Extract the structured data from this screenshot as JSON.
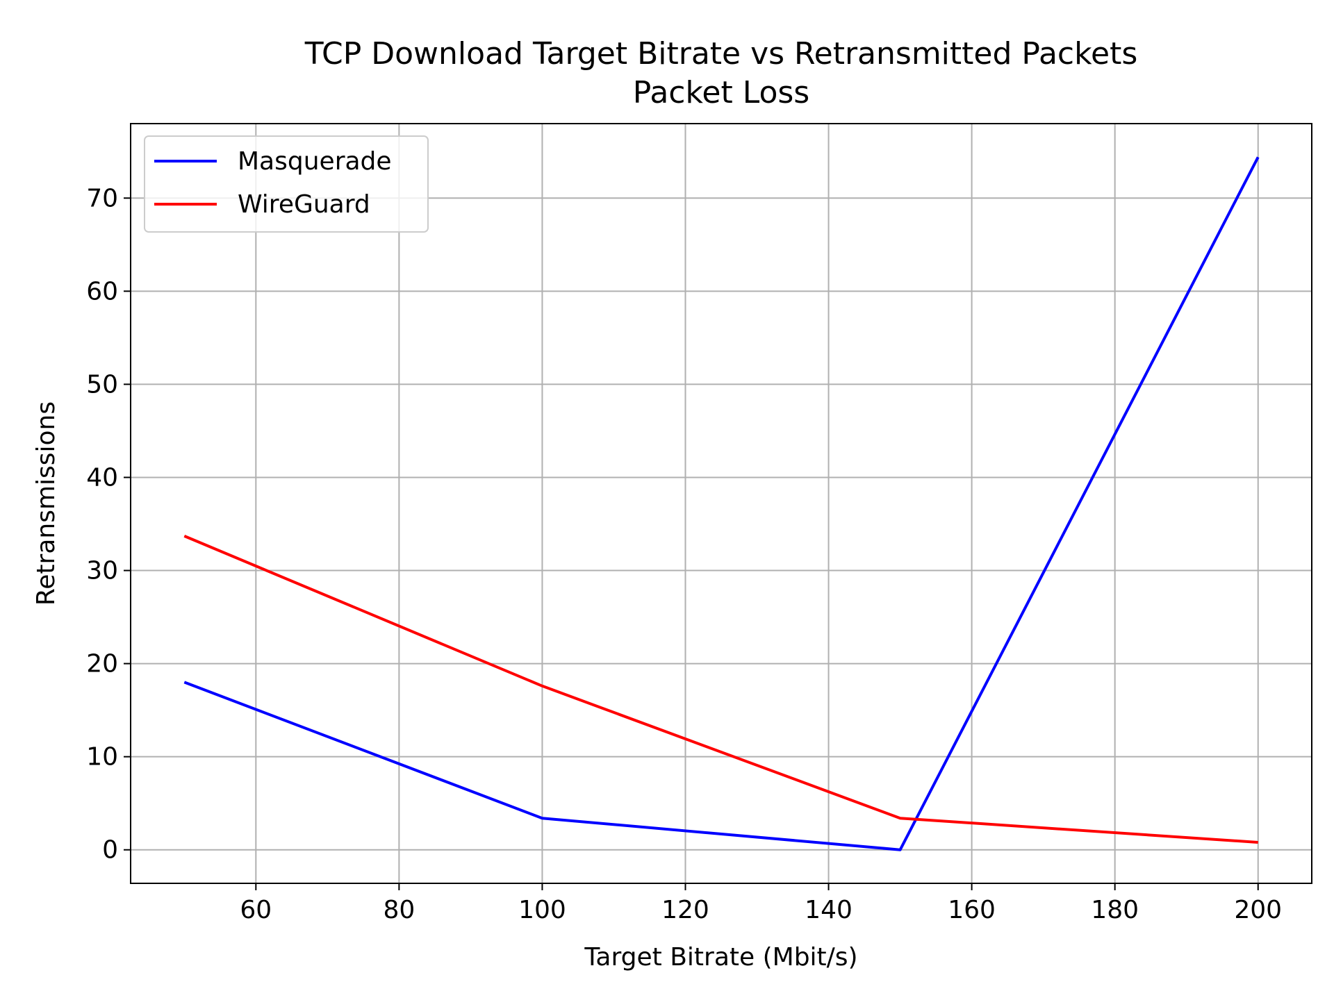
{
  "chart_data": {
    "type": "line",
    "title": "TCP Download Target Bitrate vs Retransmitted Packets",
    "subtitle": "Packet Loss",
    "xlabel": "Target Bitrate (Mbit/s)",
    "ylabel": "Retransmissions",
    "x": [
      50,
      100,
      150,
      200
    ],
    "xlim": [
      42.5,
      207.5
    ],
    "ylim": [
      -3.6,
      78
    ],
    "xticks": [
      60,
      80,
      100,
      120,
      140,
      160,
      180,
      200
    ],
    "yticks": [
      0,
      10,
      20,
      30,
      40,
      50,
      60,
      70
    ],
    "grid": true,
    "legend_position": "top-left",
    "series": [
      {
        "name": "Masquerade",
        "color": "#0000ff",
        "x": [
          50,
          100,
          150,
          200
        ],
        "values": [
          18,
          3.4,
          0,
          74.4
        ]
      },
      {
        "name": "WireGuard",
        "color": "#ff0000",
        "x": [
          50,
          100,
          150,
          200
        ],
        "values": [
          33.7,
          17.6,
          3.4,
          0.8
        ]
      }
    ]
  }
}
